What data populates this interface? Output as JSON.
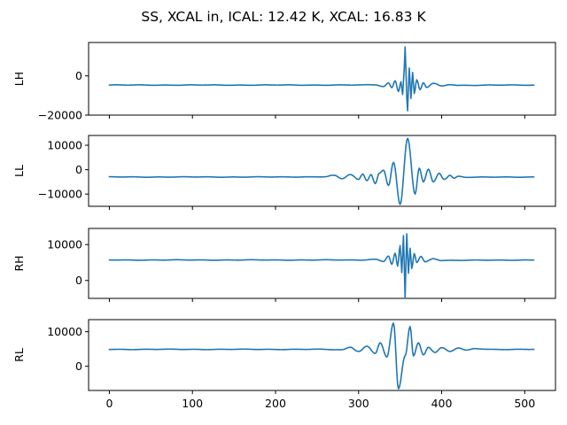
{
  "chart_data": {
    "type": "line",
    "title": "SS, XCAL in, ICAL: 12.42 K, XCAL: 16.83 K",
    "shared_x": {
      "xlim": [
        -25,
        537
      ],
      "ticks": [
        0,
        100,
        200,
        300,
        400,
        500
      ],
      "tick_labels": [
        "0",
        "100",
        "200",
        "300",
        "400",
        "500"
      ]
    },
    "line_color": "#1f77b4",
    "grid": false,
    "legend": "none",
    "panels": [
      {
        "ylabel": "LH",
        "ylim": [
          -20000,
          17000
        ],
        "yticks": [
          0,
          -20000
        ],
        "ytick_labels": [
          "0",
          "−20000"
        ],
        "baseline": -4700,
        "x": [
          0,
          300,
          320,
          330,
          336,
          340,
          344,
          348,
          351,
          353,
          355,
          356,
          357,
          358,
          359,
          360,
          361,
          363,
          365,
          367,
          370,
          374,
          378,
          382,
          390,
          400,
          410,
          420,
          511
        ],
        "y": [
          -4700,
          -4700,
          -4500,
          -5400,
          -3600,
          -6000,
          -2500,
          -8000,
          -3000,
          -9500,
          4000,
          14800,
          3000,
          -11000,
          -17800,
          -6000,
          4000,
          -11500,
          1800,
          -9000,
          -2000,
          -7000,
          -3500,
          -5900,
          -3800,
          -5200,
          -4400,
          -4800,
          -4700
        ]
      },
      {
        "ylabel": "LL",
        "ylim": [
          -15000,
          14000
        ],
        "yticks": [
          10000,
          0,
          -10000
        ],
        "ytick_labels": [
          "10000",
          "0",
          "−10000"
        ],
        "baseline": -3000,
        "x": [
          0,
          200,
          260,
          270,
          280,
          290,
          300,
          305,
          310,
          315,
          320,
          325,
          330,
          336,
          342,
          350,
          359,
          368,
          373,
          378,
          384,
          390,
          397,
          403,
          410,
          415,
          420,
          430,
          511
        ],
        "y": [
          -3000,
          -3000,
          -2900,
          -2300,
          -3700,
          -2000,
          -4000,
          -1800,
          -4500,
          -2000,
          -5700,
          -1400,
          -200,
          -6500,
          3000,
          -14200,
          12800,
          -10000,
          600,
          -5000,
          200,
          -5000,
          -1500,
          -4000,
          -2300,
          -3500,
          -2700,
          -3100,
          -3000
        ]
      },
      {
        "ylabel": "RH",
        "ylim": [
          -5000,
          14500
        ],
        "yticks": [
          10000,
          0
        ],
        "ytick_labels": [
          "10000",
          "0"
        ],
        "baseline": 5700,
        "x": [
          0,
          300,
          320,
          330,
          336,
          340,
          344,
          347,
          350,
          352,
          354,
          355,
          356,
          357,
          358,
          359,
          360,
          362,
          364,
          367,
          370,
          375,
          380,
          390,
          400,
          511
        ],
        "y": [
          5700,
          5700,
          5900,
          5300,
          6800,
          4500,
          7600,
          4000,
          9700,
          2200,
          12500,
          4000,
          -5000,
          5000,
          13000,
          7000,
          2000,
          9000,
          3300,
          7500,
          5000,
          6700,
          5200,
          6100,
          5600,
          5700
        ]
      },
      {
        "ylabel": "RL",
        "ylim": [
          -7000,
          13500
        ],
        "yticks": [
          10000,
          0
        ],
        "ytick_labels": [
          "10000",
          "0"
        ],
        "baseline": 4900,
        "x": [
          0,
          250,
          280,
          290,
          300,
          310,
          320,
          326,
          334,
          342,
          348,
          356,
          362,
          366,
          372,
          378,
          384,
          392,
          400,
          410,
          420,
          430,
          440,
          460,
          511
        ],
        "y": [
          4900,
          4900,
          4800,
          5500,
          4300,
          5800,
          3700,
          6800,
          2700,
          12500,
          -6500,
          3000,
          11500,
          3000,
          6800,
          3300,
          5500,
          4000,
          5400,
          4300,
          5300,
          4600,
          5100,
          4900,
          4900
        ]
      }
    ]
  }
}
